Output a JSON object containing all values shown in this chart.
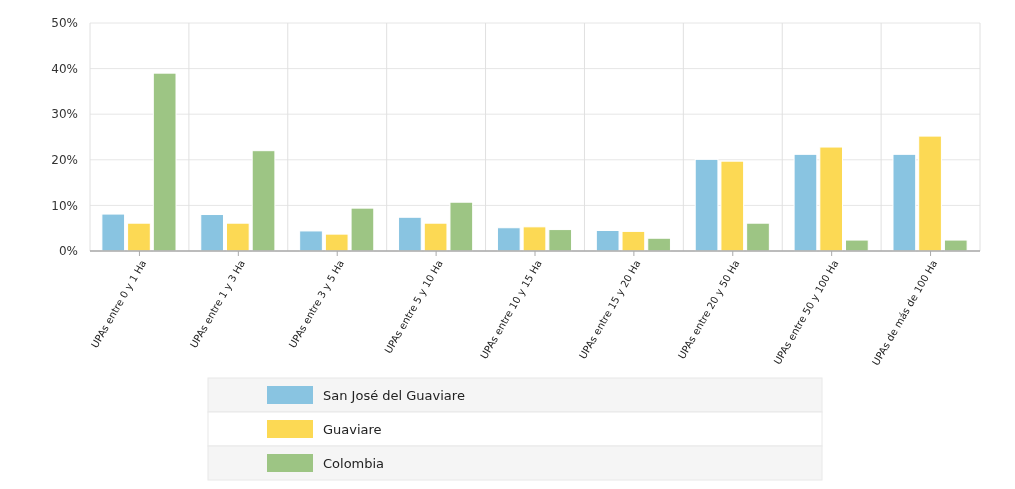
{
  "chart_data": {
    "type": "bar",
    "categories": [
      "UPAs entre 0 y 1 Ha",
      "UPAs entre 1 y 3 Ha",
      "UPAs entre 3 y 5 Ha",
      "UPAs entre 5 y 10 Ha",
      "UPAs entre 10 y 15 Ha",
      "UPAs entre 15 y 20 Ha",
      "UPAs entre 20 y 50 Ha",
      "UPAs entre 50 y 100 Ha",
      "UPAs de más de 100 Ha"
    ],
    "series": [
      {
        "name": "San José del Guaviare",
        "color": "#89c4e1",
        "values": [
          8.1,
          8.0,
          4.4,
          7.4,
          5.1,
          4.5,
          20.1,
          21.2,
          21.2
        ]
      },
      {
        "name": "Guaviare",
        "color": "#fcd954",
        "values": [
          6.1,
          6.1,
          3.7,
          6.1,
          5.3,
          4.3,
          19.7,
          22.8,
          25.2
        ]
      },
      {
        "name": "Colombia",
        "color": "#9dc584",
        "values": [
          39.0,
          22.0,
          9.4,
          10.7,
          4.7,
          2.8,
          6.1,
          2.4,
          2.4
        ]
      }
    ],
    "ylim": [
      0,
      50
    ],
    "yticks": [
      {
        "value": 0,
        "label": "0%"
      },
      {
        "value": 10,
        "label": "10%"
      },
      {
        "value": 20,
        "label": "20%"
      },
      {
        "value": 30,
        "label": "30%"
      },
      {
        "value": 40,
        "label": "40%"
      },
      {
        "value": 50,
        "label": "50%"
      }
    ],
    "grid": true,
    "legend": "bottom"
  }
}
